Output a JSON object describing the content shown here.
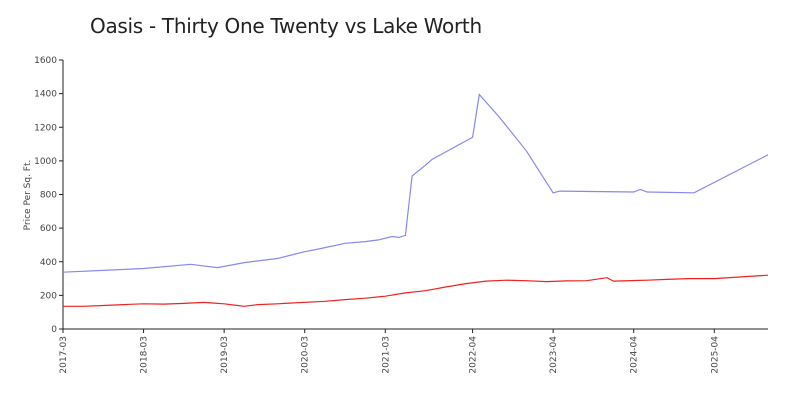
{
  "chart_data": {
    "type": "line",
    "title": "Oasis - Thirty One Twenty vs Lake Worth",
    "xlabel": "",
    "ylabel": "Price Per Sq. Ft.",
    "ylim": [
      0,
      1600
    ],
    "yticks": [
      0,
      200,
      400,
      600,
      800,
      1000,
      1200,
      1400,
      1600
    ],
    "xticks": [
      "2017-03",
      "2018-03",
      "2019-03",
      "2020-03",
      "2021-03",
      "2022-04",
      "2023-04",
      "2024-04",
      "2025-04"
    ],
    "xlim": [
      "2017-03",
      "2025-12"
    ],
    "grid": false,
    "legend": "none",
    "series": [
      {
        "color": "#8888ee",
        "x": [
          "2017-03",
          "2018-03",
          "2018-10",
          "2019-02",
          "2019-06",
          "2019-09",
          "2019-11",
          "2020-01",
          "2020-03",
          "2020-05",
          "2020-09",
          "2020-12",
          "2021-02",
          "2021-04",
          "2021-05",
          "2021-06",
          "2021-07",
          "2021-09",
          "2021-10",
          "2022-04",
          "2022-05",
          "2022-08",
          "2022-12",
          "2023-04",
          "2023-05",
          "2024-04",
          "2024-05",
          "2024-06",
          "2025-01",
          "2025-12"
        ],
        "y": [
          338,
          360,
          385,
          365,
          395,
          410,
          420,
          440,
          460,
          475,
          510,
          520,
          530,
          550,
          545,
          557,
          910,
          975,
          1010,
          1140,
          1395,
          1260,
          1060,
          810,
          820,
          815,
          830,
          815,
          810,
          1036
        ]
      },
      {
        "color": "#ee2222",
        "x": [
          "2017-03",
          "2017-06",
          "2017-09",
          "2017-12",
          "2018-03",
          "2018-06",
          "2018-09",
          "2018-12",
          "2019-01",
          "2019-03",
          "2019-05",
          "2019-06",
          "2019-08",
          "2019-11",
          "2019-12",
          "2020-06",
          "2020-09",
          "2020-12",
          "2021-03",
          "2021-06",
          "2021-09",
          "2021-12",
          "2022-03",
          "2022-06",
          "2022-09",
          "2022-12",
          "2023-03",
          "2023-06",
          "2023-09",
          "2023-12",
          "2024-01",
          "2024-06",
          "2024-09",
          "2024-12",
          "2025-04",
          "2025-08",
          "2025-12"
        ],
        "y": [
          135,
          135,
          140,
          145,
          150,
          148,
          152,
          158,
          155,
          150,
          140,
          135,
          145,
          150,
          152,
          165,
          175,
          183,
          195,
          215,
          228,
          250,
          270,
          285,
          290,
          287,
          282,
          286,
          287,
          305,
          285,
          290,
          295,
          300,
          300,
          310,
          320
        ]
      }
    ]
  }
}
